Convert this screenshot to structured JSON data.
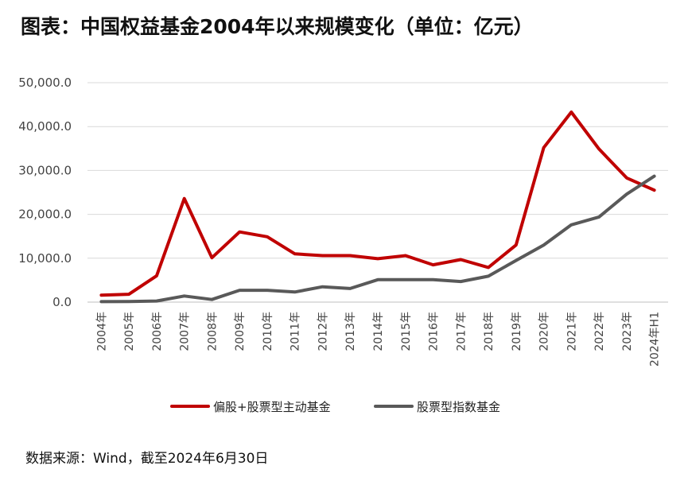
{
  "title": "图表：中国权益基金2004年以来规模变化（单位：亿元）",
  "source": "数据来源：Wind，截至2024年6月30日",
  "chart_data": {
    "type": "line",
    "title": "图表：中国权益基金2004年以来规模变化（单位：亿元）",
    "unit": "亿元",
    "xlabel": "",
    "ylabel": "",
    "ylim": [
      0,
      50000
    ],
    "yticks": [
      0,
      10000,
      20000,
      30000,
      40000,
      50000
    ],
    "ytick_labels": [
      "0.0",
      "10,000.0",
      "20,000.0",
      "30,000.0",
      "40,000.0",
      "50,000.0"
    ],
    "grid": true,
    "legend_position": "bottom",
    "categories": [
      "2004年",
      "2005年",
      "2006年",
      "2007年",
      "2008年",
      "2009年",
      "2010年",
      "2011年",
      "2012年",
      "2013年",
      "2014年",
      "2015年",
      "2016年",
      "2017年",
      "2018年",
      "2019年",
      "2020年",
      "2021年",
      "2022年",
      "2023年",
      "2024年H1"
    ],
    "series": [
      {
        "name": "偏股+股票型主动基金",
        "color": "#c00000",
        "values": [
          1600,
          1800,
          6000,
          23600,
          10100,
          16000,
          14900,
          11000,
          10600,
          10600,
          9900,
          10600,
          8500,
          9700,
          7900,
          13000,
          35200,
          43300,
          34900,
          28300,
          25500
        ]
      },
      {
        "name": "股票型指数基金",
        "color": "#595959",
        "values": [
          100,
          150,
          250,
          1400,
          600,
          2700,
          2700,
          2300,
          3500,
          3100,
          5100,
          5100,
          5100,
          4700,
          5900,
          9500,
          13000,
          17600,
          19400,
          24600,
          28700
        ]
      }
    ]
  }
}
